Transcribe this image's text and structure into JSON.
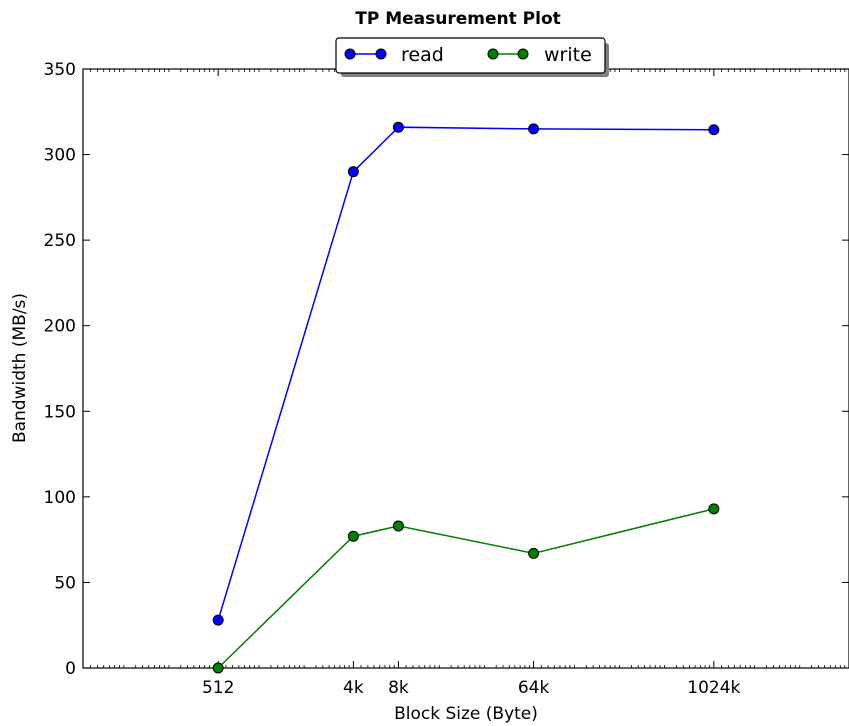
{
  "chart_data": {
    "type": "line",
    "title": "TP Measurement Plot",
    "xlabel": "Block Size (Byte)",
    "ylabel": "Bandwidth (MB/s)",
    "x_scale": "log2",
    "x": [
      512,
      4096,
      8192,
      65536,
      1048576
    ],
    "x_tick_labels": [
      "512",
      "4k",
      "8k",
      "64k",
      "1024k"
    ],
    "xlim": [
      64,
      8388608
    ],
    "ylim": [
      0,
      350
    ],
    "y_ticks": [
      "0",
      "50",
      "100",
      "150",
      "200",
      "250",
      "300",
      "350"
    ],
    "grid": false,
    "legend_position": "top-center",
    "series": [
      {
        "name": "read",
        "color": "#0000ff",
        "values": [
          28,
          290,
          316,
          315,
          314.5
        ]
      },
      {
        "name": "write",
        "color": "#008000",
        "values": [
          0,
          77,
          83,
          67,
          93
        ]
      }
    ]
  }
}
